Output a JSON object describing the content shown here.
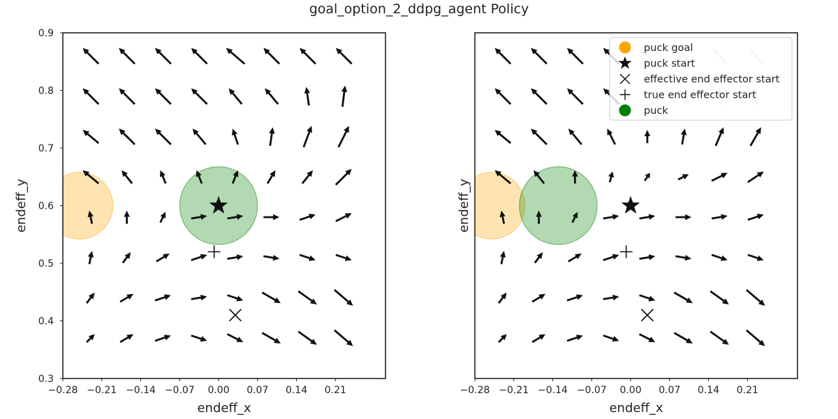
{
  "figure": {
    "title": "goal_option_2_ddpg_agent Policy"
  },
  "colors": {
    "arrow": "#111111",
    "arrow_faded": "#c8c8c8",
    "goal": "#ffa500",
    "puck": "#008000",
    "frame": "#222222"
  },
  "chart_data": [
    {
      "type": "quiver",
      "xlabel": "endeff_x",
      "ylabel": "endeff_y",
      "xlim": [
        -0.28,
        0.3
      ],
      "ylim": [
        0.3,
        0.9
      ],
      "xticks": [
        "−0.28",
        "−0.21",
        "−0.14",
        "−0.07",
        "0.00",
        "0.07",
        "0.14",
        "0.21"
      ],
      "xtick_values": [
        -0.28,
        -0.21,
        -0.14,
        -0.07,
        0.0,
        0.07,
        0.14,
        0.21
      ],
      "yticks": [
        "0.3",
        "0.4",
        "0.5",
        "0.6",
        "0.7",
        "0.8",
        "0.9"
      ],
      "ytick_values": [
        0.3,
        0.4,
        0.5,
        0.6,
        0.7,
        0.8,
        0.9
      ],
      "show_yticks": true,
      "grid": false,
      "puck_goal": {
        "x": -0.25,
        "y": 0.6,
        "radius": 0.06
      },
      "puck": {
        "x": 0.0,
        "y": 0.6,
        "radius": 0.07
      },
      "puck_start": {
        "x": 0.0,
        "y": 0.6
      },
      "effective_end_effector_start": {
        "x": 0.03,
        "y": 0.41
      },
      "true_end_effector_start": {
        "x": -0.008,
        "y": 0.52
      },
      "grid_x": [
        -0.23,
        -0.165,
        -0.1,
        -0.035,
        0.03,
        0.095,
        0.16,
        0.225
      ],
      "grid_y": [
        0.37,
        0.44,
        0.51,
        0.58,
        0.65,
        0.72,
        0.79,
        0.86
      ],
      "vectors_dx": [
        [
          0.3,
          0.5,
          0.6,
          0.6,
          0.6,
          0.7,
          0.7,
          0.7
        ],
        [
          0.3,
          0.5,
          0.6,
          0.6,
          0.6,
          0.7,
          0.7,
          0.7
        ],
        [
          0.1,
          0.3,
          0.5,
          0.6,
          0.6,
          0.6,
          0.6,
          0.6
        ],
        [
          -0.1,
          0.0,
          0.2,
          0.6,
          0.6,
          0.6,
          0.6,
          0.6
        ],
        [
          -0.6,
          -0.4,
          -0.2,
          -0.2,
          0.2,
          0.3,
          0.4,
          0.6
        ],
        [
          -0.6,
          -0.6,
          -0.6,
          -0.5,
          -0.2,
          0.1,
          0.3,
          0.4
        ],
        [
          -0.6,
          -0.6,
          -0.6,
          -0.6,
          -0.5,
          -0.5,
          -0.1,
          0.1
        ],
        [
          -0.6,
          -0.6,
          -0.6,
          -0.6,
          -0.7,
          -0.6,
          -0.6,
          -0.6
        ]
      ],
      "vectors_dy": [
        [
          0.3,
          0.3,
          0.2,
          -0.2,
          -0.3,
          -0.4,
          -0.5,
          -0.6
        ],
        [
          0.4,
          0.3,
          0.2,
          0.1,
          -0.2,
          -0.4,
          -0.5,
          -0.6
        ],
        [
          0.5,
          0.4,
          0.3,
          0.2,
          0.1,
          -0.1,
          -0.2,
          -0.2
        ],
        [
          0.5,
          0.5,
          0.4,
          0.1,
          0.1,
          0.0,
          0.2,
          0.3
        ],
        [
          0.5,
          0.5,
          0.5,
          0.5,
          0.5,
          0.5,
          0.5,
          0.6
        ],
        [
          0.5,
          0.6,
          0.6,
          0.6,
          0.6,
          0.7,
          0.8,
          0.8
        ],
        [
          0.6,
          0.6,
          0.6,
          0.6,
          0.6,
          0.6,
          0.7,
          0.8
        ],
        [
          0.6,
          0.6,
          0.6,
          0.6,
          0.6,
          0.6,
          0.6,
          0.6
        ]
      ]
    },
    {
      "type": "quiver",
      "xlabel": "endeff_x",
      "ylabel": "endeff_y",
      "xlim": [
        -0.28,
        0.3
      ],
      "ylim": [
        0.3,
        0.9
      ],
      "xticks": [
        "−0.28",
        "−0.21",
        "−0.14",
        "−0.07",
        "0.00",
        "0.07",
        "0.14",
        "0.21"
      ],
      "xtick_values": [
        -0.28,
        -0.21,
        -0.14,
        -0.07,
        0.0,
        0.07,
        0.14,
        0.21
      ],
      "yticks": [],
      "ytick_values": [],
      "show_yticks": false,
      "grid": false,
      "legend_position": "upper-right",
      "legend": [
        {
          "marker": "circle-orange",
          "label": "puck goal"
        },
        {
          "marker": "star",
          "label": "puck start"
        },
        {
          "marker": "x",
          "label": "effective end effector start"
        },
        {
          "marker": "plus",
          "label": "true end effector start"
        },
        {
          "marker": "circle-green",
          "label": "puck"
        }
      ],
      "puck_goal": {
        "x": -0.25,
        "y": 0.6,
        "radius": 0.06
      },
      "puck": {
        "x": -0.13,
        "y": 0.6,
        "radius": 0.07
      },
      "puck_start": {
        "x": 0.0,
        "y": 0.6
      },
      "effective_end_effector_start": {
        "x": 0.03,
        "y": 0.41
      },
      "true_end_effector_start": {
        "x": -0.008,
        "y": 0.52
      },
      "grid_x": [
        -0.23,
        -0.165,
        -0.1,
        -0.035,
        0.03,
        0.095,
        0.16,
        0.225
      ],
      "grid_y": [
        0.37,
        0.44,
        0.51,
        0.58,
        0.65,
        0.72,
        0.79,
        0.86
      ],
      "vectors_dx": [
        [
          0.3,
          0.5,
          0.6,
          0.6,
          0.6,
          0.7,
          0.7,
          0.7
        ],
        [
          0.3,
          0.5,
          0.6,
          0.6,
          0.6,
          0.7,
          0.7,
          0.7
        ],
        [
          0.1,
          0.3,
          0.5,
          0.6,
          0.6,
          0.6,
          0.6,
          0.6
        ],
        [
          -0.1,
          0.0,
          0.2,
          0.6,
          0.6,
          0.6,
          0.6,
          0.6
        ],
        [
          -0.6,
          -0.4,
          0.0,
          0.1,
          0.2,
          0.4,
          0.6,
          0.6
        ],
        [
          -0.6,
          -0.6,
          -0.5,
          -0.3,
          0.0,
          0.1,
          0.3,
          0.4
        ],
        [
          -0.6,
          -0.6,
          -0.6,
          -0.6,
          -0.6,
          -0.5,
          -0.1,
          0.0
        ],
        [
          -0.6,
          -0.6,
          -0.6,
          -0.6,
          -0.6,
          -0.5,
          -0.5,
          -0.5
        ]
      ],
      "vectors_dy": [
        [
          0.3,
          0.3,
          0.2,
          -0.2,
          -0.3,
          -0.4,
          -0.5,
          -0.6
        ],
        [
          0.4,
          0.3,
          0.2,
          0.1,
          -0.2,
          -0.4,
          -0.5,
          -0.6
        ],
        [
          0.5,
          0.4,
          0.3,
          0.2,
          0.1,
          -0.1,
          -0.2,
          -0.2
        ],
        [
          0.5,
          0.5,
          0.4,
          0.1,
          0.1,
          0.0,
          0.1,
          0.2
        ],
        [
          0.5,
          0.5,
          0.5,
          0.4,
          0.3,
          0.2,
          0.3,
          0.4
        ],
        [
          0.5,
          0.6,
          0.6,
          0.6,
          0.5,
          0.6,
          0.7,
          0.7
        ],
        [
          0.6,
          0.6,
          0.6,
          0.6,
          0.6,
          0.6,
          0.7,
          0.7
        ],
        [
          0.6,
          0.6,
          0.6,
          0.6,
          0.6,
          0.6,
          0.6,
          0.6
        ]
      ],
      "faded_rows_from_top": 2,
      "faded_cols_from_left": 4
    }
  ]
}
